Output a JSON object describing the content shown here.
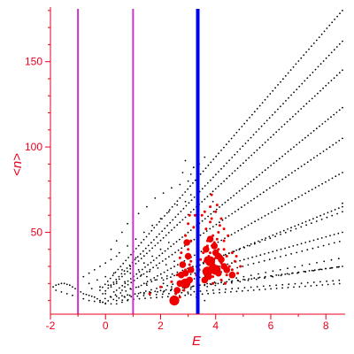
{
  "chart_data": {
    "type": "scatter",
    "xlabel": "E",
    "ylabel": "<n>",
    "xlim": [
      -2.0,
      8.7
    ],
    "ylim": [
      2,
      182
    ],
    "xticks": [
      "-2",
      "0",
      "2",
      "4",
      "6",
      "8"
    ],
    "xtick_values": [
      -2,
      0,
      2,
      4,
      6,
      8
    ],
    "yticks": [
      "50",
      "100",
      "150"
    ],
    "ytick_values": [
      50,
      100,
      150
    ],
    "grid": false,
    "vertical_lines": [
      {
        "x": -1.0,
        "color": "#cc33cc"
      },
      {
        "x": 1.0,
        "color": "#cc33cc"
      },
      {
        "x": 3.35,
        "color": "#0000ee"
      }
    ],
    "colors": {
      "axis": "#e8001c",
      "points": "#000000",
      "highlight": "#ee0000"
    },
    "band_series": [
      {
        "color": "#000000",
        "x0": -0.2,
        "x1": 8.6,
        "yLow": [
          10,
          62
        ],
        "yHigh": [
          16,
          180
        ],
        "points": 95
      },
      {
        "color": "#000000",
        "x0": -0.1,
        "x1": 8.6,
        "yLow": [
          9,
          45
        ],
        "yHigh": [
          14,
          162
        ],
        "points": 90
      },
      {
        "color": "#000000",
        "x0": 0.2,
        "x1": 8.6,
        "yLow": [
          12,
          30
        ],
        "yHigh": [
          18,
          145
        ],
        "points": 85
      },
      {
        "color": "#000000",
        "x0": 0.4,
        "x1": 8.6,
        "yLow": [
          10,
          20
        ],
        "yHigh": [
          16,
          123
        ],
        "points": 80
      },
      {
        "color": "#000000",
        "x0": 0.7,
        "x1": 8.6,
        "yLow": [
          12,
          22
        ],
        "yHigh": [
          18,
          105
        ],
        "points": 70
      },
      {
        "color": "#000000",
        "x0": 1.4,
        "x1": 8.6,
        "yLow": [
          14,
          30
        ],
        "yHigh": [
          20,
          85
        ],
        "points": 60
      },
      {
        "color": "#000000",
        "x0": 2.1,
        "x1": 8.6,
        "yLow": [
          15,
          35
        ],
        "yHigh": [
          22,
          65
        ],
        "points": 50
      },
      {
        "color": "#000000",
        "x0": 2.8,
        "x1": 8.6,
        "yLow": [
          16,
          30
        ],
        "yHigh": [
          24,
          50
        ],
        "points": 40
      }
    ],
    "point_series": [
      {
        "name": "",
        "color": "#000000",
        "r": 0.9,
        "points": [
          [
            -1.9,
            18
          ],
          [
            -1.8,
            19
          ],
          [
            -1.7,
            19.5
          ],
          [
            -1.6,
            20
          ],
          [
            -1.5,
            20
          ],
          [
            -1.4,
            19.5
          ],
          [
            -1.3,
            19
          ],
          [
            -1.2,
            18
          ],
          [
            -1.1,
            17
          ],
          [
            -1.0,
            16
          ],
          [
            -0.9,
            15
          ],
          [
            -0.8,
            14
          ],
          [
            -0.7,
            13.5
          ],
          [
            -0.6,
            13
          ],
          [
            -0.5,
            12.5
          ],
          [
            -0.4,
            12
          ],
          [
            -0.3,
            11
          ],
          [
            -0.2,
            10
          ],
          [
            -0.1,
            9
          ],
          [
            0.0,
            8
          ],
          [
            -1.8,
            16
          ],
          [
            -1.6,
            15
          ],
          [
            -1.4,
            14
          ],
          [
            -1.2,
            13
          ],
          [
            -1.0,
            12
          ],
          [
            -0.8,
            11
          ],
          [
            -0.6,
            10
          ],
          [
            -0.4,
            9.5
          ],
          [
            -0.2,
            9
          ],
          [
            0.0,
            8.5
          ],
          [
            0.2,
            8
          ],
          [
            0.4,
            8
          ],
          [
            0.6,
            9
          ],
          [
            0.8,
            10
          ],
          [
            -1.0,
            22
          ],
          [
            -0.8,
            24
          ],
          [
            -0.6,
            26
          ],
          [
            -0.4,
            28
          ],
          [
            -0.2,
            30
          ],
          [
            0.0,
            32
          ],
          [
            0.2,
            34
          ],
          [
            0.4,
            36
          ],
          [
            -0.6,
            20
          ],
          [
            -0.3,
            22
          ],
          [
            0.0,
            24
          ],
          [
            0.3,
            26
          ],
          [
            0.6,
            28
          ],
          [
            0.9,
            30
          ],
          [
            -0.5,
            17
          ],
          [
            -0.2,
            18
          ],
          [
            0.1,
            19
          ],
          [
            0.4,
            20
          ],
          [
            0.7,
            21
          ],
          [
            1.0,
            22
          ],
          [
            0.0,
            14
          ],
          [
            0.3,
            15
          ],
          [
            0.6,
            16
          ],
          [
            0.9,
            17
          ],
          [
            1.2,
            18
          ],
          [
            1.5,
            19
          ],
          [
            0.2,
            40
          ],
          [
            0.4,
            45
          ],
          [
            0.6,
            50
          ],
          [
            0.8,
            55
          ],
          [
            1.0,
            60
          ],
          [
            1.2,
            61
          ],
          [
            0.5,
            38
          ],
          [
            0.8,
            42
          ],
          [
            1.1,
            46
          ],
          [
            1.4,
            50
          ],
          [
            1.7,
            54
          ],
          [
            2.0,
            58
          ],
          [
            2.3,
            62
          ],
          [
            2.6,
            66
          ],
          [
            2.9,
            68
          ],
          [
            3.1,
            72
          ],
          [
            1.5,
            65
          ],
          [
            1.8,
            70
          ],
          [
            2.1,
            73
          ],
          [
            2.4,
            76
          ],
          [
            2.7,
            78
          ],
          [
            3.0,
            80
          ],
          [
            3.2,
            88
          ],
          [
            2.8,
            85
          ],
          [
            3.1,
            84
          ],
          [
            3.9,
            68
          ],
          [
            2.9,
            92
          ],
          [
            3.2,
            88
          ],
          [
            3.4,
            90
          ],
          [
            3.6,
            94
          ],
          [
            1.3,
            25
          ],
          [
            1.6,
            27
          ],
          [
            1.9,
            29
          ],
          [
            2.2,
            31
          ],
          [
            2.5,
            33
          ],
          [
            1.1,
            35
          ],
          [
            1.4,
            32
          ],
          [
            1.7,
            36
          ],
          [
            2.0,
            40
          ],
          [
            2.3,
            44
          ],
          [
            0.9,
            26
          ],
          [
            1.2,
            28
          ],
          [
            1.5,
            24
          ],
          [
            1.8,
            22
          ],
          [
            2.1,
            20
          ],
          [
            2.4,
            18
          ],
          [
            2.7,
            16
          ],
          [
            3.0,
            14
          ],
          [
            3.3,
            12
          ],
          [
            3.6,
            10
          ],
          [
            8.6,
            67
          ]
        ]
      },
      {
        "name": "",
        "color": "#ee0000",
        "r": 1.5,
        "points": [
          [
            2.7,
            35
          ],
          [
            2.8,
            30
          ],
          [
            2.9,
            28
          ],
          [
            3.0,
            40
          ],
          [
            3.1,
            33
          ],
          [
            2.6,
            25
          ],
          [
            2.9,
            22
          ],
          [
            3.05,
            31
          ],
          [
            2.75,
            38
          ],
          [
            3.15,
            27
          ],
          [
            3.6,
            33
          ],
          [
            3.7,
            28
          ],
          [
            3.8,
            38
          ],
          [
            3.9,
            30
          ],
          [
            4.0,
            35
          ],
          [
            4.1,
            28
          ],
          [
            4.2,
            32
          ],
          [
            4.3,
            40
          ],
          [
            4.4,
            36
          ],
          [
            4.5,
            30
          ],
          [
            3.7,
            45
          ],
          [
            3.9,
            48
          ],
          [
            4.1,
            50
          ],
          [
            4.3,
            52
          ],
          [
            3.8,
            56
          ],
          [
            4.0,
            62
          ],
          [
            4.2,
            58
          ],
          [
            3.8,
            65
          ],
          [
            3.6,
            22
          ],
          [
            3.9,
            24
          ],
          [
            4.0,
            26
          ],
          [
            4.2,
            22
          ],
          [
            4.4,
            25
          ],
          [
            4.6,
            28
          ],
          [
            4.7,
            33
          ],
          [
            4.6,
            38
          ],
          [
            3.7,
            42
          ],
          [
            4.3,
            45
          ],
          [
            4.45,
            48
          ],
          [
            3.95,
            44
          ],
          [
            3.5,
            60
          ],
          [
            3.6,
            62
          ],
          [
            3.85,
            72
          ],
          [
            4.1,
            40
          ],
          [
            4.05,
            46
          ],
          [
            3.75,
            36
          ],
          [
            4.25,
            34
          ],
          [
            3.9,
            20
          ],
          [
            3.3,
            25
          ],
          [
            3.4,
            28
          ],
          [
            3.45,
            34
          ],
          [
            3.1,
            45
          ],
          [
            2.9,
            48
          ],
          [
            3.0,
            55
          ],
          [
            3.25,
            60
          ],
          [
            2.85,
            16
          ],
          [
            2.7,
            12
          ],
          [
            1.6,
            14
          ],
          [
            2.0,
            18
          ],
          [
            2.4,
            21
          ],
          [
            2.55,
            14
          ],
          [
            3.55,
            38
          ],
          [
            4.35,
            20
          ],
          [
            4.55,
            24
          ],
          [
            4.8,
            26
          ],
          [
            4.9,
            30
          ],
          [
            4.75,
            36
          ],
          [
            3.65,
            52
          ],
          [
            4.15,
            54
          ],
          [
            3.2,
            53
          ],
          [
            3.85,
            58
          ],
          [
            4.05,
            66
          ],
          [
            3.05,
            60
          ]
        ]
      },
      {
        "name": "",
        "color": "#ee0000",
        "r": 3.8,
        "points": [
          [
            2.8,
            31
          ],
          [
            2.9,
            26
          ],
          [
            3.0,
            36
          ],
          [
            2.7,
            20
          ],
          [
            3.1,
            28
          ],
          [
            3.7,
            34
          ],
          [
            3.9,
            30
          ],
          [
            4.0,
            38
          ],
          [
            4.2,
            34
          ],
          [
            3.8,
            28
          ],
          [
            3.6,
            22
          ],
          [
            4.1,
            26
          ],
          [
            3.8,
            46
          ],
          [
            4.1,
            36
          ],
          [
            2.6,
            16
          ],
          [
            3.65,
            40
          ],
          [
            3.95,
            42
          ],
          [
            4.3,
            30
          ],
          [
            4.6,
            25
          ],
          [
            2.95,
            44
          ],
          [
            2.75,
            25
          ],
          [
            3.05,
            22
          ],
          [
            3.75,
            24
          ],
          [
            4.4,
            28
          ]
        ]
      },
      {
        "name": "",
        "color": "#ee0000",
        "r": 5.6,
        "points": [
          [
            2.9,
            20
          ],
          [
            3.8,
            33
          ],
          [
            4.0,
            28
          ],
          [
            3.7,
            27
          ],
          [
            2.5,
            10
          ]
        ]
      }
    ]
  }
}
